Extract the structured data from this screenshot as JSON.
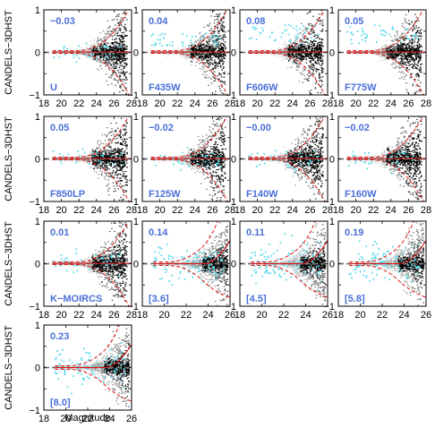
{
  "figure": {
    "ylabel": "CANDELS−3DHST",
    "xlabel": "Magnitude"
  },
  "colors": {
    "cloud": "#000000",
    "cyan_points": "#5fdcec",
    "median_line": "#dd1111",
    "zero_line": "#777777",
    "annotation": "#4a6fd8"
  },
  "chart_data": [
    {
      "type": "scatter",
      "band": "U",
      "offset": "−0.03",
      "xlim": [
        18,
        28
      ],
      "ylim": [
        -1,
        1
      ],
      "xticks": [
        18,
        20,
        22,
        24,
        26,
        28
      ],
      "yticks": [
        -1,
        -0.5,
        0,
        0.5,
        1
      ],
      "yticklabels": [
        "−1",
        "",
        "0",
        "",
        "1"
      ]
    },
    {
      "type": "scatter",
      "band": "F435W",
      "offset": "0.04",
      "xlim": [
        18,
        28
      ],
      "ylim": [
        -1,
        1
      ],
      "xticks": [
        18,
        20,
        22,
        24,
        26,
        28
      ],
      "yticks": [
        -1,
        -0.5,
        0,
        0.5,
        1
      ],
      "yticklabels": [
        "−1",
        "",
        "0",
        "",
        "1"
      ]
    },
    {
      "type": "scatter",
      "band": "F606W",
      "offset": "0.08",
      "xlim": [
        18,
        28
      ],
      "ylim": [
        -1,
        1
      ],
      "xticks": [
        18,
        20,
        22,
        24,
        26,
        28
      ],
      "yticks": [
        -1,
        -0.5,
        0,
        0.5,
        1
      ],
      "yticklabels": [
        "−1",
        "",
        "0",
        "",
        "1"
      ]
    },
    {
      "type": "scatter",
      "band": "F775W",
      "offset": "0.05",
      "xlim": [
        18,
        28
      ],
      "ylim": [
        -1,
        1
      ],
      "xticks": [
        18,
        20,
        22,
        24,
        26,
        28
      ],
      "yticks": [
        -1,
        -0.5,
        0,
        0.5,
        1
      ],
      "yticklabels": [
        "−1",
        "",
        "0",
        "",
        "1"
      ]
    },
    {
      "type": "scatter",
      "band": "F850LP",
      "offset": "0.05",
      "xlim": [
        18,
        28
      ],
      "ylim": [
        -1,
        1
      ],
      "xticks": [
        18,
        20,
        22,
        24,
        26,
        28
      ],
      "yticks": [
        -1,
        -0.5,
        0,
        0.5,
        1
      ],
      "yticklabels": [
        "−1",
        "",
        "0",
        "",
        "1"
      ]
    },
    {
      "type": "scatter",
      "band": "F125W",
      "offset": "−0.02",
      "xlim": [
        18,
        28
      ],
      "ylim": [
        -1,
        1
      ],
      "xticks": [
        18,
        20,
        22,
        24,
        26,
        28
      ],
      "yticks": [
        -1,
        -0.5,
        0,
        0.5,
        1
      ],
      "yticklabels": [
        "−1",
        "",
        "0",
        "",
        "1"
      ]
    },
    {
      "type": "scatter",
      "band": "F140W",
      "offset": "−0.00",
      "xlim": [
        18,
        28
      ],
      "ylim": [
        -1,
        1
      ],
      "xticks": [
        18,
        20,
        22,
        24,
        26,
        28
      ],
      "yticks": [
        -1,
        -0.5,
        0,
        0.5,
        1
      ],
      "yticklabels": [
        "−1",
        "",
        "0",
        "",
        "1"
      ]
    },
    {
      "type": "scatter",
      "band": "F160W",
      "offset": "−0.02",
      "xlim": [
        18,
        28
      ],
      "ylim": [
        -1,
        1
      ],
      "xticks": [
        18,
        20,
        22,
        24,
        26,
        28
      ],
      "yticks": [
        -1,
        -0.5,
        0,
        0.5,
        1
      ],
      "yticklabels": [
        "−1",
        "",
        "0",
        "",
        "1"
      ]
    },
    {
      "type": "scatter",
      "band": "K−MOIRCS",
      "offset": "0.01",
      "xlim": [
        18,
        28
      ],
      "ylim": [
        -1,
        1
      ],
      "xticks": [
        18,
        20,
        22,
        24,
        26,
        28
      ],
      "yticks": [
        -1,
        -0.5,
        0,
        0.5,
        1
      ],
      "yticklabels": [
        "−1",
        "",
        "0",
        "",
        "1"
      ]
    },
    {
      "type": "scatter",
      "band": "[3.6]",
      "offset": "0.14",
      "xlim": [
        18,
        26
      ],
      "ylim": [
        -1,
        1
      ],
      "xticks": [
        18,
        20,
        22,
        24,
        26
      ],
      "yticks": [
        -1,
        -0.5,
        0,
        0.5,
        1
      ],
      "yticklabels": [
        "−1",
        "",
        "0",
        "",
        "1"
      ]
    },
    {
      "type": "scatter",
      "band": "[4.5]",
      "offset": "0.11",
      "xlim": [
        18,
        26
      ],
      "ylim": [
        -1,
        1
      ],
      "xticks": [
        18,
        20,
        22,
        24,
        26
      ],
      "yticks": [
        -1,
        -0.5,
        0,
        0.5,
        1
      ],
      "yticklabels": [
        "−1",
        "",
        "0",
        "",
        "1"
      ]
    },
    {
      "type": "scatter",
      "band": "[5.8]",
      "offset": "0.19",
      "xlim": [
        18,
        26
      ],
      "ylim": [
        -1,
        1
      ],
      "xticks": [
        18,
        20,
        22,
        24,
        26
      ],
      "yticks": [
        -1,
        -0.5,
        0,
        0.5,
        1
      ],
      "yticklabels": [
        "−1",
        "",
        "0",
        "",
        "1"
      ]
    },
    {
      "type": "scatter",
      "band": "[8.0]",
      "offset": "0.23",
      "xlim": [
        18,
        26
      ],
      "ylim": [
        -1,
        1
      ],
      "xticks": [
        18,
        20,
        22,
        24,
        26
      ],
      "yticks": [
        -1,
        -0.5,
        0,
        0.5,
        1
      ],
      "yticklabels": [
        "−1",
        "",
        "0",
        "",
        "1"
      ]
    }
  ]
}
